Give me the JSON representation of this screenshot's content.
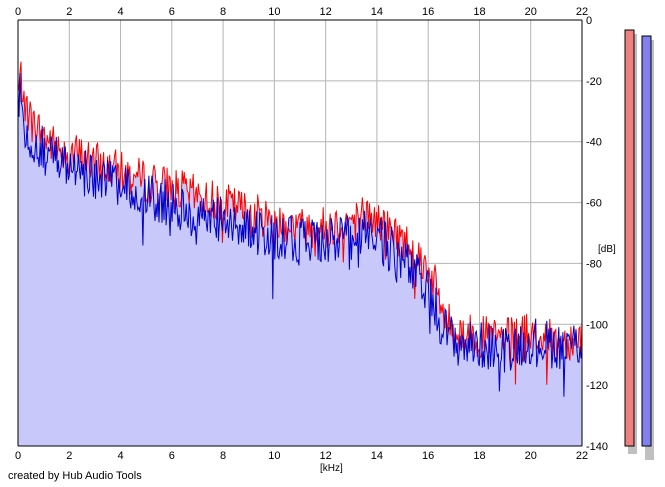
{
  "chart_data": {
    "type": "area",
    "xlabel": "[kHz]",
    "ylabel": "[dB]",
    "xlim": [
      0,
      22
    ],
    "ylim": [
      -140,
      0
    ],
    "x_ticks": [
      0,
      2,
      4,
      6,
      8,
      10,
      12,
      14,
      16,
      18,
      20,
      22
    ],
    "y_ticks": [
      0,
      -20,
      -40,
      -60,
      -80,
      -100,
      -120,
      -140
    ],
    "grid": true,
    "colors": {
      "fill": "#c8c8fb",
      "red_series": "#ff0000",
      "blue_series": "#0000cc",
      "grid": "#b4b4b4",
      "meter_left": "#f08080",
      "meter_right": "#8080f0"
    },
    "series": [
      {
        "x": [
          0,
          0.1,
          0.3,
          0.5,
          1,
          1.5,
          2,
          3,
          4,
          5,
          6,
          7,
          8,
          9,
          10,
          11,
          12,
          13,
          13.5,
          14,
          14.5,
          15,
          15.5,
          16,
          16.3,
          16.6,
          17,
          18,
          19,
          20,
          21,
          22
        ],
        "values": [
          -25,
          -18,
          -28,
          -33,
          -38,
          -42,
          -43,
          -47,
          -50,
          -53,
          -55,
          -58,
          -60,
          -63,
          -66,
          -68,
          -68,
          -66,
          -64,
          -66,
          -69,
          -72,
          -76,
          -82,
          -88,
          -97,
          -102,
          -104,
          -105,
          -103,
          -106,
          -104
        ]
      },
      {
        "x": [
          0,
          0.1,
          0.3,
          0.5,
          1,
          1.5,
          2,
          3,
          4,
          5,
          6,
          7,
          8,
          9,
          10,
          11,
          12,
          13,
          13.5,
          14,
          14.5,
          15,
          15.5,
          16,
          16.3,
          16.6,
          17,
          18,
          19,
          20,
          21,
          22
        ],
        "values": [
          -30,
          -22,
          -33,
          -38,
          -43,
          -46,
          -48,
          -52,
          -55,
          -58,
          -61,
          -64,
          -66,
          -69,
          -71,
          -73,
          -73,
          -72,
          -70,
          -72,
          -75,
          -79,
          -84,
          -90,
          -95,
          -101,
          -106,
          -107,
          -108,
          -105,
          -107,
          -106
        ]
      }
    ],
    "meters": [
      {
        "level": -140
      },
      {
        "level": -140
      }
    ]
  },
  "footer": {
    "credit": "created by Hub Audio Tools"
  }
}
